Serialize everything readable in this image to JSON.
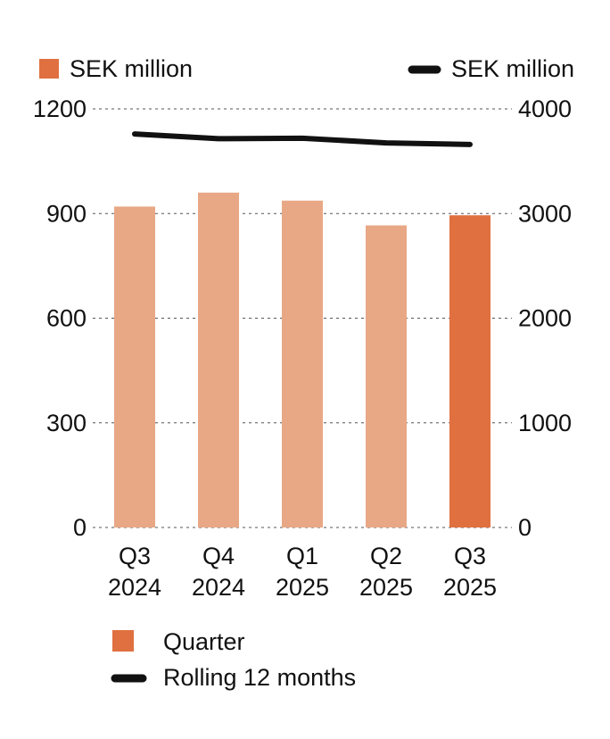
{
  "colors": {
    "bar_light": "#E8A886",
    "bar_highlight": "#E07040",
    "line": "#111111",
    "grid": "#555555"
  },
  "chart_data": {
    "type": "bar",
    "categories": [
      [
        "Q3",
        "2024"
      ],
      [
        "Q4",
        "2024"
      ],
      [
        "Q1",
        "2025"
      ],
      [
        "Q2",
        "2025"
      ],
      [
        "Q3",
        "2025"
      ]
    ],
    "series": [
      {
        "name": "Quarter",
        "type": "bar",
        "axis": "left",
        "values": [
          920,
          960,
          937,
          866,
          895
        ],
        "highlight_index": 4
      },
      {
        "name": "Rolling 12 months",
        "type": "line",
        "axis": "right",
        "values": [
          3760,
          3715,
          3720,
          3675,
          3660
        ]
      }
    ],
    "y_left": {
      "unit_label": "SEK million",
      "ylim": [
        0,
        1200
      ],
      "ticks": [
        0,
        300,
        600,
        900,
        1200
      ]
    },
    "y_right": {
      "unit_label": "SEK million",
      "ylim": [
        0,
        4000
      ],
      "ticks": [
        0,
        1000,
        2000,
        3000,
        4000
      ]
    },
    "grid": "dashed-horizontal",
    "legend": [
      "Quarter",
      "Rolling 12 months"
    ],
    "legend_placement": "bottom-left"
  }
}
